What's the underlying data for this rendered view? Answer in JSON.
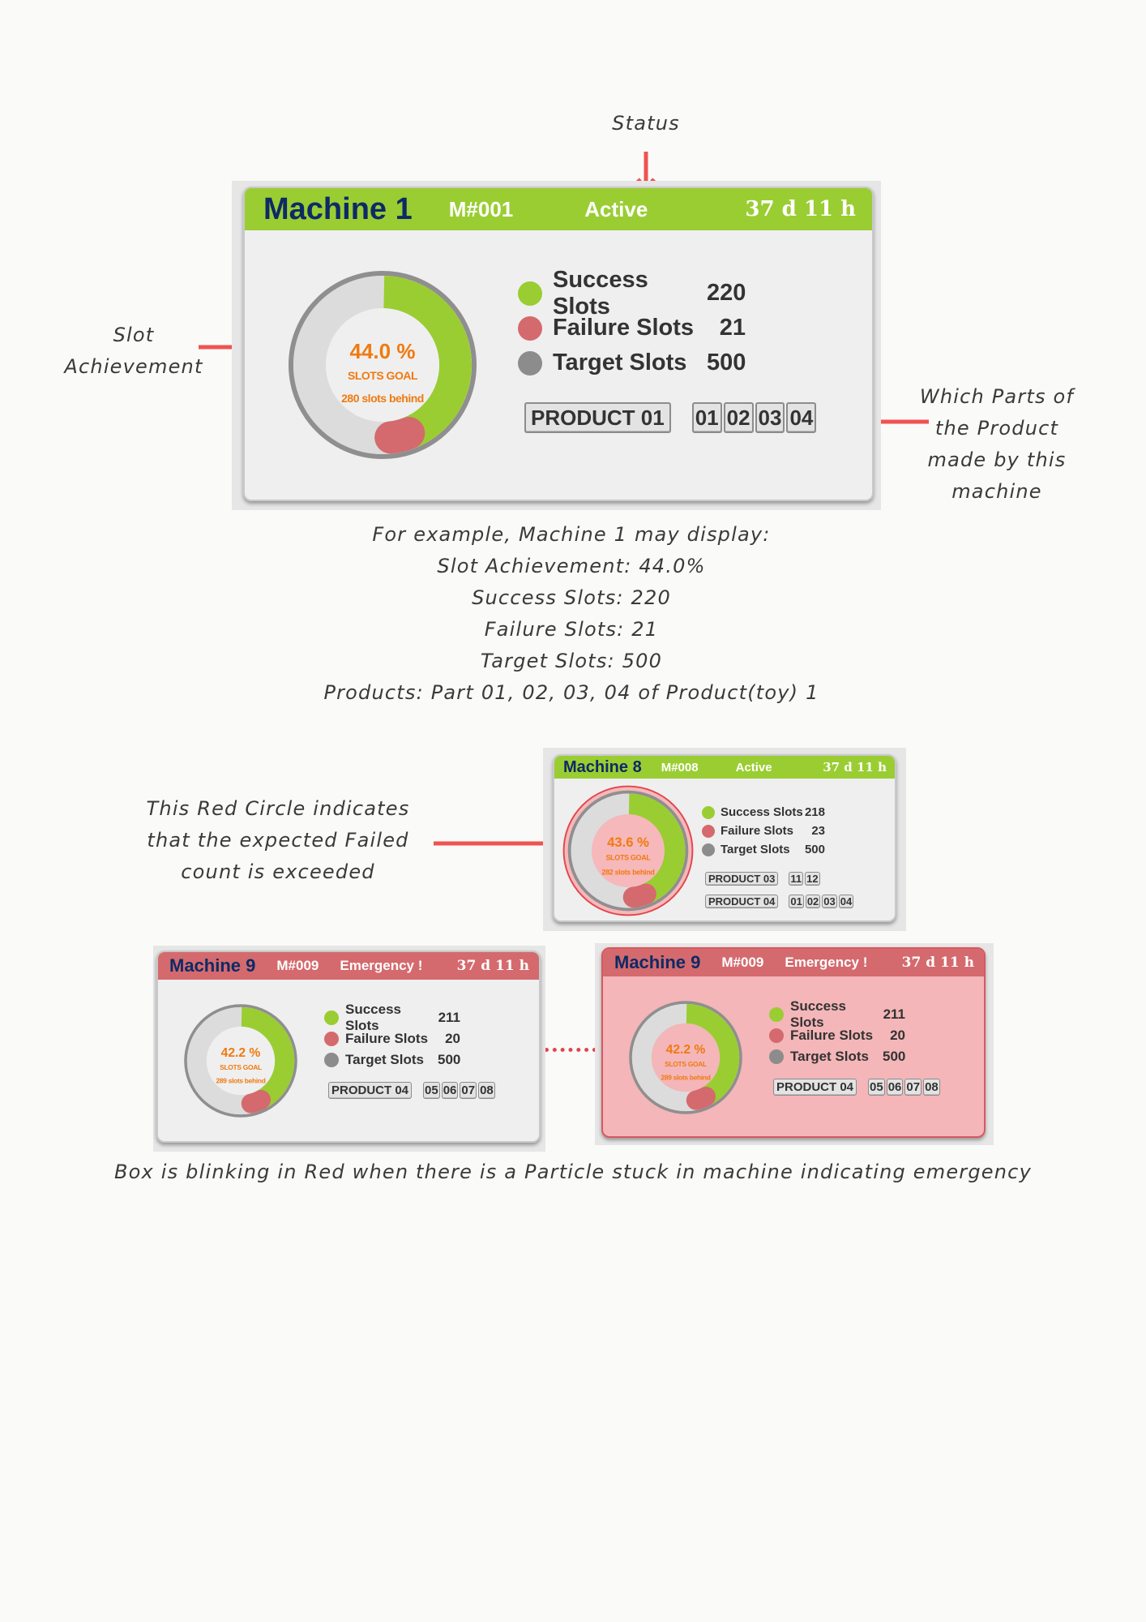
{
  "annotations": {
    "status": "Status",
    "slot_achievement_1": "Slot",
    "slot_achievement_2": "Achievement",
    "parts_1": "Which Parts of",
    "parts_2": "the Product",
    "parts_3": "made by this",
    "parts_4": "machine",
    "red_circle_1": "This Red Circle indicates",
    "red_circle_2": "that the expected Failed",
    "red_circle_3": "count is exceeded",
    "blinking": "Box is blinking in Red when there is a Particle stuck in machine indicating emergency"
  },
  "example": {
    "line1": "For example, Machine 1 may display:",
    "line2": "Slot Achievement: 44.0%",
    "line3": "Success Slots: 220",
    "line4": "Failure Slots: 21",
    "line5": "Target Slots: 500",
    "line6": "Products: Part 01, 02, 03, 04 of Product(toy) 1"
  },
  "colors": {
    "success": "#9acd32",
    "failure": "#d46a6d",
    "target": "#8c8c8c",
    "percent_text": "#f07a10",
    "title_text": "#0d2a66",
    "arrow": "#ef5350"
  },
  "cards": [
    {
      "name": "Machine 1",
      "id": "M#001",
      "status": "Active",
      "runtime": "37 d 11 h",
      "header": "green",
      "percent_label": "44.0 %",
      "percent": 44.0,
      "failure_fraction": 0.042,
      "goal": "SLOTS GOAL",
      "behind": "280 slots behind",
      "red_ring": false,
      "alert_bg": false,
      "legend": [
        {
          "label": "Success Slots",
          "value": "220"
        },
        {
          "label": "Failure Slots",
          "value": "21"
        },
        {
          "label": "Target Slots",
          "value": "500"
        }
      ],
      "product_rows": [
        {
          "product": "PRODUCT 01",
          "parts": [
            "01",
            "02",
            "03",
            "04"
          ]
        }
      ]
    },
    {
      "name": "Machine 8",
      "id": "M#008",
      "status": "Active",
      "runtime": "37 d 11 h",
      "header": "green",
      "percent_label": "43.6 %",
      "percent": 43.6,
      "failure_fraction": 0.046,
      "goal": "SLOTS GOAL",
      "behind": "282 slots behind",
      "red_ring": true,
      "alert_bg": false,
      "legend": [
        {
          "label": "Success Slots",
          "value": "218"
        },
        {
          "label": "Failure Slots",
          "value": "23"
        },
        {
          "label": "Target Slots",
          "value": "500"
        }
      ],
      "product_rows": [
        {
          "product": "PRODUCT 03",
          "parts": [
            "11",
            "12"
          ]
        },
        {
          "product": "PRODUCT 04",
          "parts": [
            "01",
            "02",
            "03",
            "04"
          ]
        }
      ]
    },
    {
      "name": "Machine 9",
      "id": "M#009",
      "status": "Emergency !",
      "runtime": "37 d 11 h",
      "header": "red",
      "percent_label": "42.2 %",
      "percent": 42.2,
      "failure_fraction": 0.04,
      "goal": "SLOTS GOAL",
      "behind": "289 slots behind",
      "red_ring": false,
      "alert_bg": false,
      "legend": [
        {
          "label": "Success Slots",
          "value": "211"
        },
        {
          "label": "Failure Slots",
          "value": "20"
        },
        {
          "label": "Target Slots",
          "value": "500"
        }
      ],
      "product_rows": [
        {
          "product": "PRODUCT 04",
          "parts": [
            "05",
            "06",
            "07",
            "08"
          ]
        }
      ]
    },
    {
      "name": "Machine 9",
      "id": "M#009",
      "status": "Emergency !",
      "runtime": "37 d 11 h",
      "header": "red",
      "percent_label": "42.2 %",
      "percent": 42.2,
      "failure_fraction": 0.04,
      "goal": "SLOTS GOAL",
      "behind": "289 slots behind",
      "red_ring": false,
      "alert_bg": true,
      "legend": [
        {
          "label": "Success Slots",
          "value": "211"
        },
        {
          "label": "Failure Slots",
          "value": "20"
        },
        {
          "label": "Target Slots",
          "value": "500"
        }
      ],
      "product_rows": [
        {
          "product": "PRODUCT 04",
          "parts": [
            "05",
            "06",
            "07",
            "08"
          ]
        }
      ]
    }
  ]
}
